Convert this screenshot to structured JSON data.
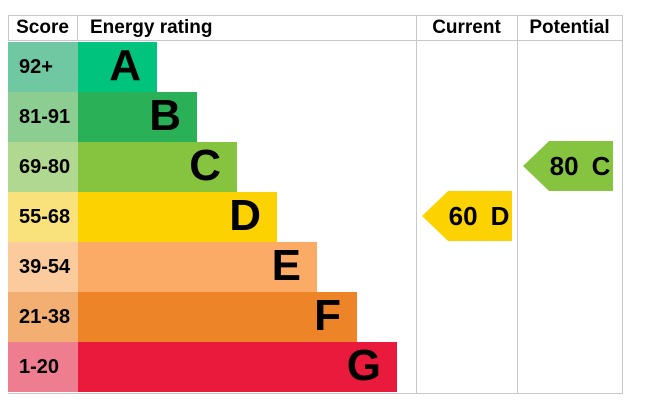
{
  "header": {
    "score": "Score",
    "energy_rating": "Energy rating",
    "current": "Current",
    "potential": "Potential"
  },
  "bands": [
    {
      "score": "92+",
      "letter": "A",
      "bar_color": "#00c47e",
      "score_bg": "#70c8a3"
    },
    {
      "score": "81-91",
      "letter": "B",
      "bar_color": "#2ab157",
      "score_bg": "#8ccd91"
    },
    {
      "score": "69-80",
      "letter": "C",
      "bar_color": "#86c440",
      "score_bg": "#b0d890"
    },
    {
      "score": "55-68",
      "letter": "D",
      "bar_color": "#fcd201",
      "score_bg": "#f9e27b"
    },
    {
      "score": "39-54",
      "letter": "E",
      "bar_color": "#fbab66",
      "score_bg": "#fccb9d"
    },
    {
      "score": "21-38",
      "letter": "F",
      "bar_color": "#ee8428",
      "score_bg": "#f3ae72"
    },
    {
      "score": "1-20",
      "letter": "G",
      "bar_color": "#e91a3c",
      "score_bg": "#ee7e8f"
    }
  ],
  "markers": {
    "current": {
      "value": "60",
      "letter": "D",
      "color": "#fcd201"
    },
    "potential": {
      "value": "80",
      "letter": "C",
      "color": "#86c440"
    }
  },
  "chart_data": {
    "type": "bar",
    "title": "EPC energy efficiency rating chart",
    "columns": [
      "Score",
      "Energy rating",
      "Current",
      "Potential"
    ],
    "categories": [
      "A",
      "B",
      "C",
      "D",
      "E",
      "F",
      "G"
    ],
    "score_ranges": [
      "92+",
      "81-91",
      "69-80",
      "55-68",
      "39-54",
      "21-38",
      "1-20"
    ],
    "bar_lengths_relative": [
      1,
      2,
      3,
      4,
      5,
      6,
      7
    ],
    "band_colors": [
      "#00c47e",
      "#2ab157",
      "#86c440",
      "#fcd201",
      "#fbab66",
      "#ee8428",
      "#e91a3c"
    ],
    "current": {
      "score": 60,
      "rating": "D"
    },
    "potential": {
      "score": 80,
      "rating": "C"
    },
    "legend_position": "none",
    "grid": "column dividers only"
  }
}
